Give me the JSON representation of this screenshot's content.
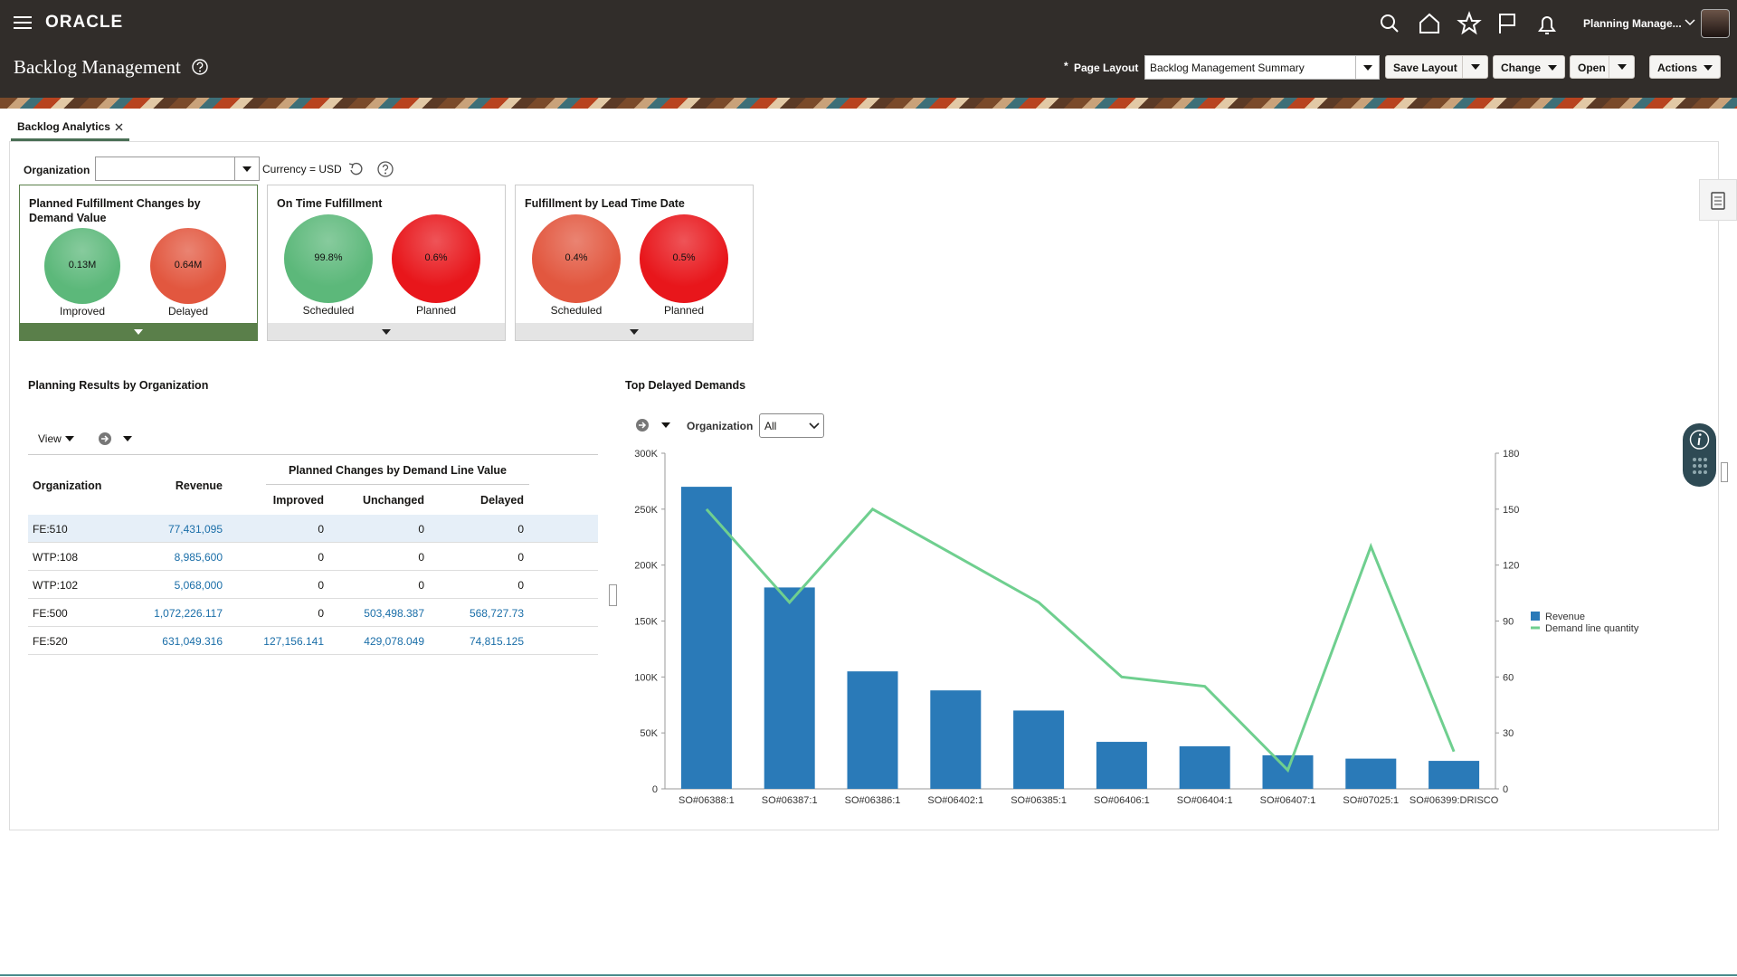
{
  "header": {
    "brand": "ORACLE",
    "title": "Backlog Management",
    "user": "Planning Manage...",
    "required_marker": "*",
    "page_layout_label": "Page Layout",
    "page_layout_value": "Backlog Management Summary",
    "buttons": [
      "Save Layout",
      "Change",
      "Open",
      "Actions"
    ]
  },
  "tab": {
    "label": "Backlog Analytics"
  },
  "filters": {
    "organization_label": "Organization",
    "currency": "Currency = USD"
  },
  "tiles": [
    {
      "title": "Planned Fulfillment Changes by Demand Value",
      "items": [
        {
          "value": "0.13M",
          "label": "Improved",
          "color": "#5cb87a"
        },
        {
          "value": "0.64M",
          "label": "Delayed",
          "color": "#e2573f"
        }
      ]
    },
    {
      "title": "On Time Fulfillment",
      "items": [
        {
          "value": "99.8%",
          "label": "Scheduled",
          "color": "#5cb87a"
        },
        {
          "value": "0.6%",
          "label": "Planned",
          "color": "#e8161b"
        }
      ]
    },
    {
      "title": "Fulfillment by Lead Time Date",
      "items": [
        {
          "value": "0.4%",
          "label": "Scheduled",
          "color": "#e2573f"
        },
        {
          "value": "0.5%",
          "label": "Planned",
          "color": "#e8161b"
        }
      ]
    }
  ],
  "table": {
    "title": "Planning Results by Organization",
    "view": "View",
    "group_header": "Planned Changes by Demand Line Value",
    "columns": [
      "Organization",
      "Revenue",
      "Improved",
      "Unchanged",
      "Delayed"
    ],
    "rows": [
      [
        "FE:510",
        "77,431,095",
        "0",
        "0",
        "0"
      ],
      [
        "WTP:108",
        "8,985,600",
        "0",
        "0",
        "0"
      ],
      [
        "WTP:102",
        "5,068,000",
        "0",
        "0",
        "0"
      ],
      [
        "FE:500",
        "1,072,226.117",
        "0",
        "503,498.387",
        "568,727.73"
      ],
      [
        "FE:520",
        "631,049.316",
        "127,156.141",
        "429,078.049",
        "74,815.125"
      ]
    ]
  },
  "chart_data": {
    "type": "bar",
    "title": "Top Delayed Demands",
    "filter_label": "Organization",
    "filter_value": "All",
    "categories": [
      "SO#06388:1",
      "SO#06387:1",
      "SO#06386:1",
      "SO#06402:1",
      "SO#06385:1",
      "SO#06406:1",
      "SO#06404:1",
      "SO#06407:1",
      "SO#07025:1",
      "SO#06399:DRISCO"
    ],
    "series": [
      {
        "name": "Revenue",
        "color": "#2a7ab8",
        "values": [
          270000,
          180000,
          105000,
          88000,
          70000,
          42000,
          38000,
          30000,
          27000,
          25000
        ]
      },
      {
        "name": "Demand line quantity",
        "color": "#6fcf8f",
        "type": "line",
        "axis": "y2",
        "values": [
          150,
          100,
          150,
          125,
          100,
          60,
          55,
          10,
          130,
          20
        ]
      }
    ],
    "ylim": [
      0,
      300000
    ],
    "yticks": [
      0,
      {
        "value": 50000,
        "label": "50K"
      },
      {
        "value": 100000,
        "label": "100K"
      },
      {
        "value": 150000,
        "label": "150K"
      },
      {
        "value": 200000,
        "label": "200K"
      },
      {
        "value": 250000,
        "label": "250K"
      },
      {
        "value": 300000,
        "label": "300K"
      }
    ],
    "y2lim": [
      0,
      180
    ],
    "y2ticks": [
      0,
      30,
      60,
      90,
      120,
      150,
      180
    ],
    "legend": "right"
  }
}
